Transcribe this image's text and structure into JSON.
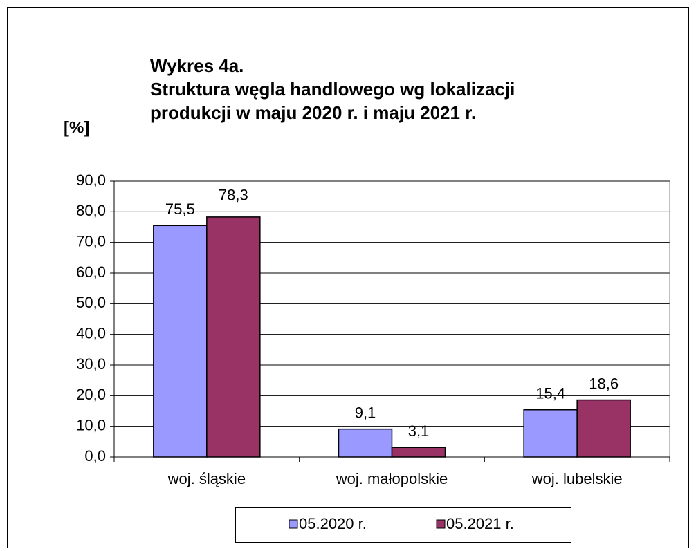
{
  "chart_data": {
    "type": "bar",
    "title": [
      "Wykres 4a.",
      "Struktura węgla handlowego wg lokalizacji",
      "produkcji w maju 2020 r. i maju 2021 r."
    ],
    "y_label": "[%]",
    "categories": [
      "woj. śląskie",
      "woj. małopolskie",
      "woj. lubelskie"
    ],
    "series": [
      {
        "name": "05.2020 r.",
        "color": "#9999ff",
        "values": [
          75.5,
          9.1,
          15.4
        ],
        "value_labels": [
          "75,5",
          "9,1",
          "15,4"
        ]
      },
      {
        "name": "05.2021 r.",
        "color": "#993366",
        "values": [
          78.3,
          3.1,
          18.6
        ],
        "value_labels": [
          "78,3",
          "3,1",
          "18,6"
        ]
      }
    ],
    "ylim": [
      0,
      90
    ],
    "yticks": [
      {
        "value": 0,
        "label": "0,0"
      },
      {
        "value": 10,
        "label": "10,0"
      },
      {
        "value": 20,
        "label": "20,0"
      },
      {
        "value": 30,
        "label": "30,0"
      },
      {
        "value": 40,
        "label": "40,0"
      },
      {
        "value": 50,
        "label": "50,0"
      },
      {
        "value": 60,
        "label": "60,0"
      },
      {
        "value": 70,
        "label": "70,0"
      },
      {
        "value": 80,
        "label": "80,0"
      },
      {
        "value": 90,
        "label": "90,0"
      }
    ],
    "grid": true,
    "legend": "bottom"
  }
}
